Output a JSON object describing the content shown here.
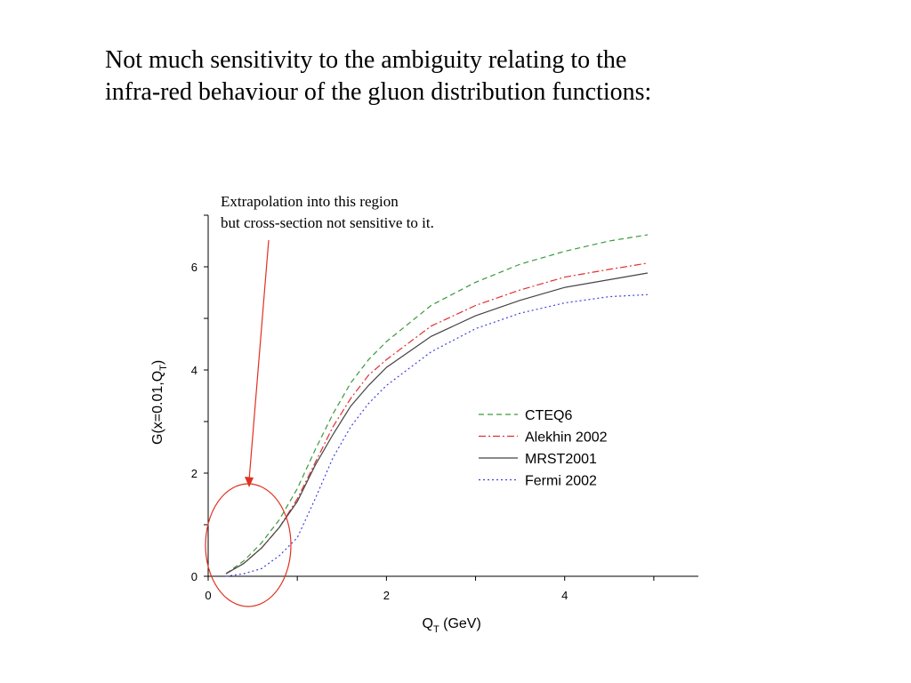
{
  "slide": {
    "headline_lines": [
      "Not much sensitivity to the ambiguity relating to the",
      "infra-red behaviour of the gluon distribution functions:"
    ]
  },
  "chart_data": {
    "type": "line",
    "xlabel": "Q",
    "xlabel_sub": "T",
    "xlabel_unit": " (GeV)",
    "ylabel": "G(x=0.01,Q",
    "ylabel_sub": "T",
    "ylabel_close": ")",
    "xlim": [
      0,
      5.5
    ],
    "ylim": [
      0,
      7
    ],
    "xticks": [
      0,
      2,
      4
    ],
    "yticks": [
      0,
      2,
      4,
      6
    ],
    "series": [
      {
        "name": "CTEQ6",
        "color": "#3a9a3a",
        "dash": "dashed",
        "x": [
          0.2,
          0.4,
          0.6,
          0.8,
          1.0,
          1.2,
          1.4,
          1.6,
          1.8,
          2.0,
          2.5,
          3.0,
          3.5,
          4.0,
          4.5,
          4.93
        ],
        "y": [
          0.05,
          0.3,
          0.65,
          1.1,
          1.7,
          2.45,
          3.15,
          3.75,
          4.2,
          4.55,
          5.25,
          5.7,
          6.05,
          6.3,
          6.5,
          6.62
        ]
      },
      {
        "name": "Alekhin 2002",
        "color": "#e03030",
        "dash": "dashdot",
        "x": [
          0.2,
          0.4,
          0.6,
          0.8,
          1.0,
          1.2,
          1.4,
          1.6,
          1.8,
          2.0,
          2.5,
          3.0,
          3.5,
          4.0,
          4.5,
          4.93
        ],
        "y": [
          0.05,
          0.25,
          0.55,
          0.95,
          1.5,
          2.2,
          2.9,
          3.45,
          3.9,
          4.2,
          4.85,
          5.25,
          5.55,
          5.8,
          5.95,
          6.07
        ]
      },
      {
        "name": "MRST2001",
        "color": "#444444",
        "dash": "solid",
        "x": [
          0.2,
          0.4,
          0.6,
          0.8,
          1.0,
          1.2,
          1.4,
          1.6,
          1.8,
          2.0,
          2.5,
          3.0,
          3.5,
          4.0,
          4.5,
          4.93
        ],
        "y": [
          0.05,
          0.25,
          0.55,
          0.95,
          1.45,
          2.15,
          2.75,
          3.3,
          3.7,
          4.05,
          4.65,
          5.05,
          5.35,
          5.6,
          5.75,
          5.88
        ]
      },
      {
        "name": "Fermi 2002",
        "color": "#4040e0",
        "dash": "dotted",
        "x": [
          0.2,
          0.4,
          0.6,
          0.8,
          1.0,
          1.2,
          1.4,
          1.6,
          1.8,
          2.0,
          2.5,
          3.0,
          3.5,
          4.0,
          4.5,
          4.93
        ],
        "y": [
          0.0,
          0.05,
          0.15,
          0.4,
          0.75,
          1.5,
          2.3,
          2.9,
          3.35,
          3.7,
          4.35,
          4.8,
          5.1,
          5.3,
          5.42,
          5.46
        ]
      }
    ],
    "legend_position": "middle-right",
    "grid": false,
    "annotation": {
      "lines": [
        "Extrapolation into this region",
        "but cross-section not sensitive to it."
      ],
      "color": "#e03020"
    }
  }
}
